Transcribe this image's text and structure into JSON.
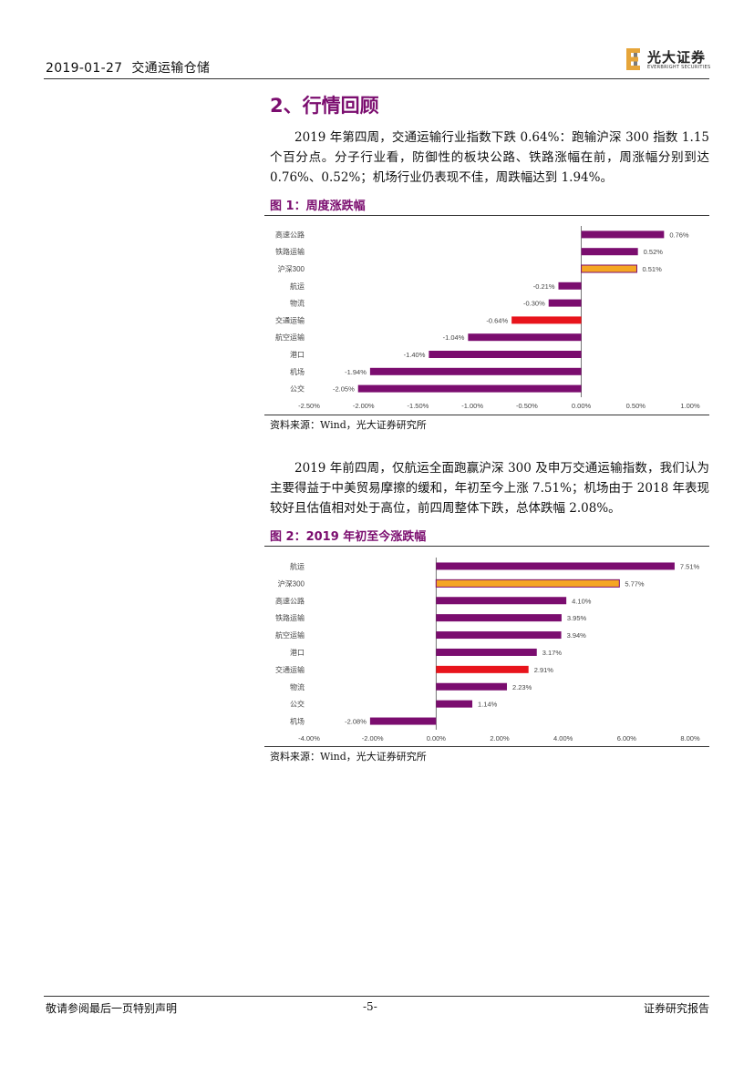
{
  "header": {
    "date": "2019-01-27",
    "category": "交通运输仓储",
    "logo_cn": "光大证券",
    "logo_en": "EVERBRIGHT SECURITIES"
  },
  "section": {
    "title": "2、行情回顾",
    "para1": "2019 年第四周，交通运输行业指数下跌 0.64%：跑输沪深 300 指数 1.15 个百分点。分子行业看，防御性的板块公路、铁路涨幅在前，周涨幅分别到达 0.76%、0.52%；机场行业仍表现不佳，周跌幅达到 1.94%。",
    "para2": "2019 年前四周，仅航运全面跑赢沪深 300 及申万交通运输指数，我们认为主要得益于中美贸易摩擦的缓和，年初至今上涨 7.51%；机场由于 2018 年表现较好且估值相对处于高位，前四周整体下跌，总体跌幅 2.08%。"
  },
  "figure1": {
    "title": "图 1：周度涨跌幅",
    "source": "资料来源：Wind，光大证券研究所"
  },
  "figure2": {
    "title": "图 2：2019 年初至今涨跌幅",
    "source": "资料来源：Wind，光大证券研究所"
  },
  "colors": {
    "purple": "#7b0d6f",
    "orange": "#f5a623",
    "red": "#e8141c",
    "title": "#7b0d6f"
  },
  "chart_data": [
    {
      "type": "bar",
      "orientation": "horizontal",
      "categories": [
        "高速公路",
        "铁路运输",
        "沪深300",
        "航运",
        "物流",
        "交通运输",
        "航空运输",
        "港口",
        "机场",
        "公交"
      ],
      "values": [
        0.76,
        0.52,
        0.51,
        -0.21,
        -0.3,
        -0.64,
        -1.04,
        -1.4,
        -1.94,
        -2.05
      ],
      "labels": [
        "0.76%",
        "0.52%",
        "0.51%",
        "-0.21%",
        "-0.30%",
        "-0.64%",
        "-1.04%",
        "-1.40%",
        "-1.94%",
        "-2.05%"
      ],
      "bar_colors": [
        "purple",
        "purple",
        "orange",
        "purple",
        "purple",
        "red",
        "purple",
        "purple",
        "purple",
        "purple"
      ],
      "xlim": [
        -2.5,
        1.0
      ],
      "ticks": [
        -2.5,
        -2.0,
        -1.5,
        -1.0,
        -0.5,
        0.0,
        0.5,
        1.0
      ],
      "tick_labels": [
        "-2.50%",
        "-2.00%",
        "-1.50%",
        "-1.00%",
        "-0.50%",
        "0.00%",
        "0.50%",
        "1.00%"
      ],
      "grid": false
    },
    {
      "type": "bar",
      "orientation": "horizontal",
      "categories": [
        "航运",
        "沪深300",
        "高速公路",
        "铁路运输",
        "航空运输",
        "港口",
        "交通运输",
        "物流",
        "公交",
        "机场"
      ],
      "values": [
        7.51,
        5.77,
        4.1,
        3.95,
        3.94,
        3.17,
        2.91,
        2.23,
        1.14,
        -2.08
      ],
      "labels": [
        "7.51%",
        "5.77%",
        "4.10%",
        "3.95%",
        "3.94%",
        "3.17%",
        "2.91%",
        "2.23%",
        "1.14%",
        "-2.08%"
      ],
      "bar_colors": [
        "purple",
        "orange",
        "purple",
        "purple",
        "purple",
        "purple",
        "red",
        "purple",
        "purple",
        "purple"
      ],
      "xlim": [
        -4.0,
        8.0
      ],
      "ticks": [
        -4,
        -2,
        0,
        2,
        4,
        6,
        8
      ],
      "tick_labels": [
        "-4.00%",
        "-2.00%",
        "0.00%",
        "2.00%",
        "4.00%",
        "6.00%",
        "8.00%"
      ],
      "grid": false
    }
  ],
  "footer": {
    "disclaimer": "敬请参阅最后一页特别声明",
    "page": "-5-",
    "report_type": "证券研究报告"
  }
}
